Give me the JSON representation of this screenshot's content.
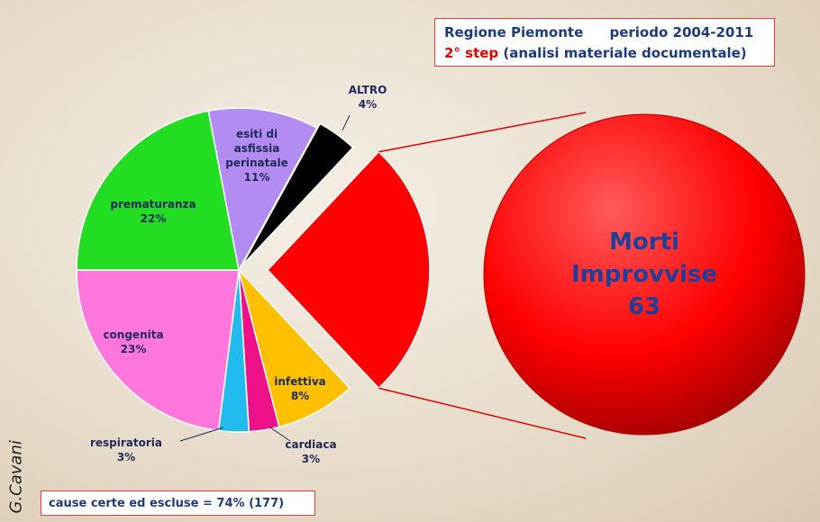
{
  "chart_data": {
    "type": "pie",
    "categories": [
      null,
      "infettiva",
      "cardiaca",
      "respiratoria",
      "congenita",
      "prematuranza",
      "esiti di asfissia perinatale",
      "ALTRO"
    ],
    "values": [
      26,
      8,
      3,
      3,
      23,
      22,
      11,
      4
    ],
    "value_labels": [
      null,
      "8%",
      "3%",
      "3%",
      "23%",
      "22%",
      "11%",
      "4%"
    ],
    "colors": [
      "#ff0000",
      "#ffc000",
      "#ee1188",
      "#22bbee",
      "#ff77dd",
      "#22dd22",
      "#b28cf0",
      "#000000"
    ],
    "callout": {
      "label": "Morti Improvvise",
      "value": 63
    }
  },
  "header": {
    "region": "Regione Piemonte",
    "period": "periodo 2004-2011",
    "step": "2° step",
    "step_detail": "(analisi materiale documentale)"
  },
  "footer": "cause certe ed escluse = 74% (177)",
  "credit": "G.Cavani"
}
